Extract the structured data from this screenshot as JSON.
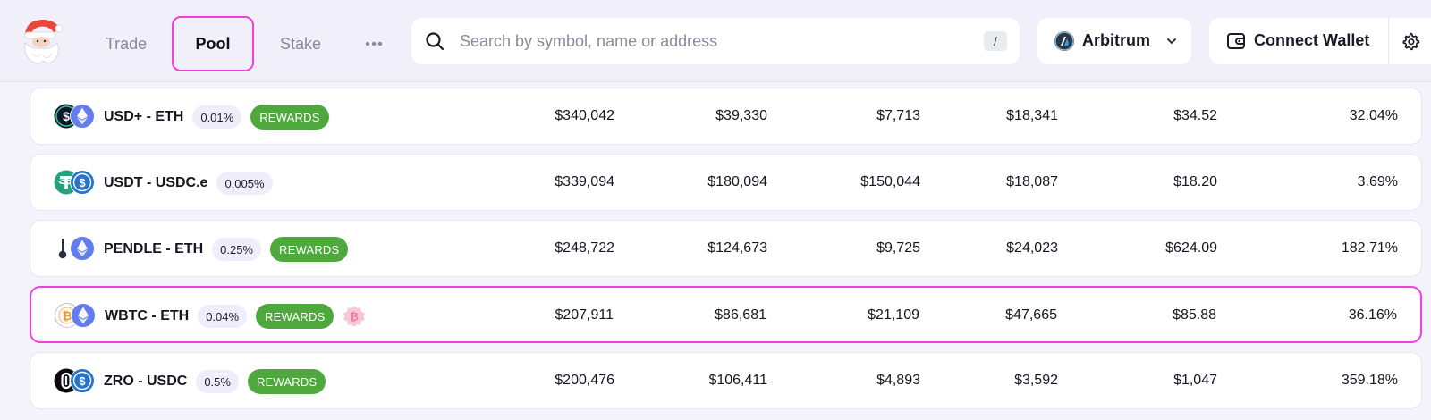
{
  "nav": {
    "items": [
      {
        "label": "Trade"
      },
      {
        "label": "Pool"
      },
      {
        "label": "Stake"
      }
    ],
    "more_icon": "more-horizontal-icon"
  },
  "search": {
    "placeholder": "Search by symbol, name or address",
    "shortcut": "/"
  },
  "network": {
    "label": "Arbitrum",
    "icon": "arbitrum-logo-icon"
  },
  "wallet": {
    "label": "Connect Wallet",
    "icon": "wallet-icon"
  },
  "settings_icon": "gear-icon",
  "colors": {
    "accent_highlight": "#f33ddf",
    "rewards_green": "#4fa83d",
    "eth_blue": "#627eea",
    "usdc_blue": "#2775ca",
    "tether_green": "#26a17b",
    "btc_orange": "#f7931a"
  },
  "pools": [
    {
      "pair": "USD+ - ETH",
      "fee": "0.01%",
      "rewards": "REWARDS",
      "token_a": "usd-plus-icon",
      "token_b": "eth-icon",
      "values": [
        "$340,042",
        "$39,330",
        "$7,713",
        "$18,341",
        "$34.52",
        "32.04%"
      ]
    },
    {
      "pair": "USDT - USDC.e",
      "fee": "0.005%",
      "rewards": "",
      "token_a": "usdt-icon",
      "token_b": "usdc-icon",
      "values": [
        "$339,094",
        "$180,094",
        "$150,044",
        "$18,087",
        "$18.20",
        "3.69%"
      ]
    },
    {
      "pair": "PENDLE - ETH",
      "fee": "0.25%",
      "rewards": "REWARDS",
      "token_a": "pendle-icon",
      "token_b": "eth-icon",
      "values": [
        "$248,722",
        "$124,673",
        "$9,725",
        "$24,023",
        "$624.09",
        "182.71%"
      ]
    },
    {
      "pair": "WBTC - ETH",
      "fee": "0.04%",
      "rewards": "REWARDS",
      "token_a": "wbtc-icon",
      "token_b": "eth-icon",
      "extra": "bitcoin-badge-icon",
      "values": [
        "$207,911",
        "$86,681",
        "$21,109",
        "$47,665",
        "$85.88",
        "36.16%"
      ]
    },
    {
      "pair": "ZRO - USDC",
      "fee": "0.5%",
      "rewards": "REWARDS",
      "token_a": "zro-icon",
      "token_b": "usdc-icon",
      "values": [
        "$200,476",
        "$106,411",
        "$4,893",
        "$3,592",
        "$1,047",
        "359.18%"
      ]
    }
  ]
}
